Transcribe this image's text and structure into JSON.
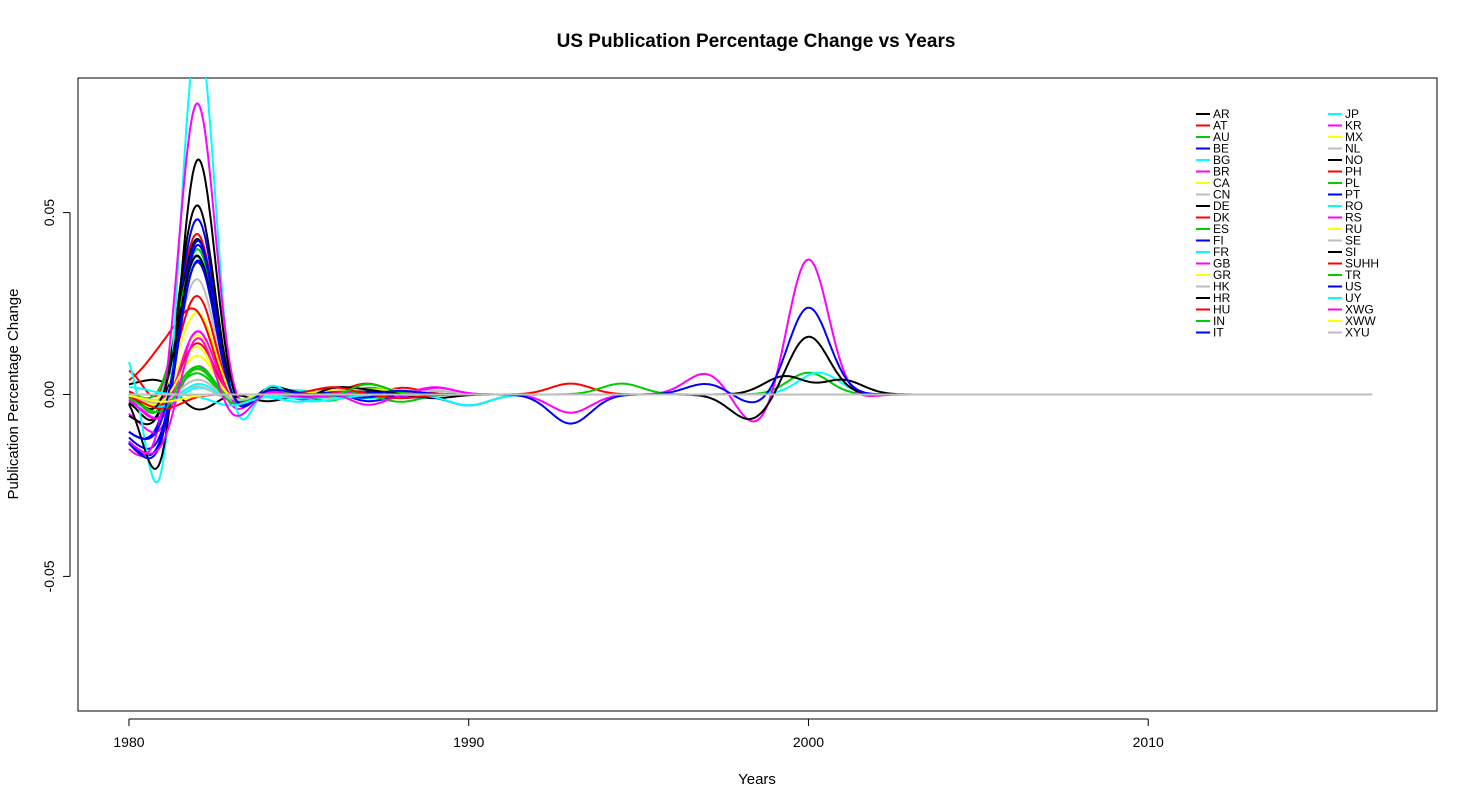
{
  "chart_data": {
    "type": "line",
    "title": "US Publication Percentage Change vs Years",
    "xlabel": "Years",
    "ylabel": "Publication Percentage Change",
    "xlim": [
      1978.5,
      2018.5
    ],
    "ylim": [
      -0.087,
      0.087
    ],
    "x_ticks": [
      1980,
      1990,
      2000,
      2010
    ],
    "y_ticks": [
      -0.05,
      0.0,
      0.05
    ],
    "y_tick_labels": [
      "-0.05",
      "0.00",
      "0.05"
    ],
    "grid": false,
    "legend_placement": "top-right",
    "palette": [
      "#000000",
      "#ff0000",
      "#00cd00",
      "#0000ff",
      "#00ffff",
      "#ff00ff",
      "#ffff00",
      "#bebebe"
    ],
    "series": [
      {
        "name": "AR",
        "color": "#000000",
        "amps": [
          0.002,
          0.004,
          -0.005,
          0.001,
          -0.002,
          0.0,
          0.0,
          0.0,
          0.0,
          -0.001
        ]
      },
      {
        "name": "AT",
        "color": "#ff0000",
        "amps": [
          0.008,
          -0.008,
          0.047,
          -0.007,
          0.002,
          -0.001,
          0.001,
          -0.001,
          0.002,
          0.0
        ]
      },
      {
        "name": "AU",
        "color": "#00cd00",
        "amps": [
          0.002,
          -0.01,
          0.043,
          -0.006,
          0.001,
          0.0,
          -0.001,
          0.002,
          0.0,
          0.001
        ]
      },
      {
        "name": "BE",
        "color": "#0000ff",
        "amps": [
          -0.008,
          -0.012,
          0.052,
          -0.008,
          0.002,
          -0.001,
          0.001,
          -0.002,
          0.0,
          0.0
        ]
      },
      {
        "name": "BG",
        "color": "#00ffff",
        "amps": [
          0.0,
          -0.006,
          0.04,
          -0.005,
          0.001,
          0.001,
          0.0,
          -0.001,
          0.0,
          0.0
        ]
      },
      {
        "name": "BR",
        "color": "#ff00ff",
        "amps": [
          -0.003,
          -0.012,
          0.021,
          -0.007,
          0.002,
          -0.001,
          0.002,
          0.0,
          -0.001,
          0.002
        ]
      },
      {
        "name": "CA",
        "color": "#ffff00",
        "amps": [
          0.0,
          -0.005,
          0.018,
          -0.004,
          0.001,
          0.0,
          0.0,
          0.001,
          0.0,
          0.0
        ]
      },
      {
        "name": "CN",
        "color": "#bebebe",
        "amps": [
          0.0,
          -0.006,
          0.034,
          -0.006,
          0.001,
          0.0,
          -0.001,
          0.0,
          0.0,
          0.001
        ]
      },
      {
        "name": "DE",
        "color": "#000000",
        "amps": [
          -0.004,
          -0.01,
          0.046,
          -0.007,
          0.002,
          0.0,
          0.001,
          0.0,
          0.001,
          0.0
        ]
      },
      {
        "name": "DK",
        "color": "#ff0000",
        "amps": [
          0.0,
          -0.005,
          0.029,
          -0.005,
          0.001,
          -0.001,
          0.0,
          0.003,
          0.0,
          0.0
        ]
      },
      {
        "name": "ES",
        "color": "#00cd00",
        "amps": [
          0.001,
          -0.004,
          0.04,
          -0.005,
          0.001,
          0.0,
          0.001,
          0.0,
          -0.002,
          0.0
        ]
      },
      {
        "name": "FI",
        "color": "#0000ff",
        "amps": [
          -0.01,
          -0.017,
          0.047,
          -0.008,
          0.002,
          -0.001,
          0.0,
          -0.001,
          0.001,
          0.0
        ]
      },
      {
        "name": "FR",
        "color": "#00ffff",
        "amps": [
          0.001,
          -0.004,
          0.003,
          -0.002,
          0.0,
          -0.002,
          0.0,
          0.0,
          0.0,
          0.0
        ]
      },
      {
        "name": "GB",
        "color": "#ff00ff",
        "amps": [
          0.0,
          -0.008,
          0.01,
          -0.004,
          0.001,
          0.0,
          0.0,
          0.001,
          0.0,
          0.0
        ]
      },
      {
        "name": "GR",
        "color": "#ffff00",
        "amps": [
          0.0,
          -0.004,
          0.024,
          -0.004,
          0.001,
          0.0,
          0.0,
          0.0,
          0.0,
          0.0
        ]
      },
      {
        "name": "HK",
        "color": "#bebebe",
        "amps": [
          0.0,
          -0.003,
          0.008,
          -0.003,
          0.0,
          0.0,
          0.0,
          0.0,
          0.0,
          0.0
        ]
      },
      {
        "name": "HR",
        "color": "#000000",
        "amps": [
          0.0,
          -0.012,
          0.056,
          -0.009,
          0.003,
          0.0,
          0.0,
          0.0,
          0.0,
          0.0
        ]
      },
      {
        "name": "HU",
        "color": "#ff0000",
        "amps": [
          0.002,
          0.01,
          0.022,
          -0.005,
          0.001,
          0.0,
          0.0,
          0.0,
          0.0,
          0.0
        ]
      },
      {
        "name": "IN",
        "color": "#00cd00",
        "amps": [
          0.0,
          -0.003,
          0.007,
          -0.003,
          0.0,
          0.0,
          -0.002,
          0.002,
          0.0,
          0.0
        ]
      },
      {
        "name": "IT",
        "color": "#0000ff",
        "amps": [
          -0.009,
          -0.015,
          0.041,
          -0.007,
          0.002,
          -0.001,
          0.001,
          0.001,
          -0.001,
          0.0
        ]
      },
      {
        "name": "JP",
        "color": "#00ffff",
        "amps": [
          0.017,
          -0.043,
          0.11,
          -0.018,
          0.005,
          -0.002,
          -0.001,
          0.0,
          0.0,
          0.0
        ]
      },
      {
        "name": "KR",
        "color": "#ff00ff",
        "amps": [
          -0.012,
          -0.016,
          0.085,
          -0.01,
          0.003,
          -0.002,
          0.001,
          -0.003,
          0.0,
          0.002
        ]
      },
      {
        "name": "MX",
        "color": "#ffff00",
        "amps": [
          0.0,
          -0.005,
          0.015,
          -0.005,
          0.001,
          0.0,
          0.001,
          0.001,
          0.001,
          0.0
        ]
      },
      {
        "name": "NL",
        "color": "#bebebe",
        "amps": [
          0.0,
          -0.002,
          0.003,
          -0.002,
          0.0,
          0.0,
          0.0,
          0.0,
          0.0,
          0.0
        ]
      },
      {
        "name": "NO",
        "color": "#000000",
        "amps": [
          0.003,
          -0.03,
          0.072,
          -0.01,
          0.003,
          -0.002,
          0.002,
          0.001,
          0.0,
          0.0
        ]
      },
      {
        "name": "PH",
        "color": "#ff0000",
        "amps": [
          0.002,
          -0.006,
          0.016,
          -0.004,
          0.001,
          0.0,
          0.002,
          0.0,
          -0.001,
          0.0
        ]
      },
      {
        "name": "PL",
        "color": "#00cd00",
        "amps": [
          0.001,
          -0.004,
          0.009,
          -0.003,
          0.001,
          0.0,
          -0.001,
          0.003,
          0.0,
          0.0
        ]
      },
      {
        "name": "PT",
        "color": "#0000ff",
        "amps": [
          -0.01,
          -0.018,
          0.046,
          -0.008,
          0.002,
          -0.001,
          0.0,
          0.0,
          0.001,
          0.0
        ]
      },
      {
        "name": "RO",
        "color": "#00ffff",
        "amps": [
          0.0,
          -0.004,
          0.004,
          -0.002,
          0.0,
          0.0,
          0.0,
          0.0,
          0.0,
          0.0
        ]
      },
      {
        "name": "RS",
        "color": "#ff00ff",
        "amps": [
          0.0,
          -0.009,
          0.02,
          -0.005,
          0.001,
          -0.001,
          0.0,
          0.0,
          0.0,
          0.0
        ]
      },
      {
        "name": "RU",
        "color": "#ffff00",
        "amps": [
          0.0,
          -0.004,
          0.012,
          -0.003,
          0.001,
          0.0,
          0.0,
          0.0,
          0.0,
          0.0
        ]
      },
      {
        "name": "SE",
        "color": "#bebebe",
        "amps": [
          0.0,
          -0.003,
          0.005,
          -0.002,
          0.0,
          0.0,
          0.0,
          0.0,
          0.0,
          0.0
        ]
      },
      {
        "name": "SI",
        "color": "#000000",
        "amps": [
          0.001,
          -0.008,
          0.041,
          -0.007,
          0.002,
          -0.001,
          0.0,
          0.0,
          0.0,
          0.0
        ]
      },
      {
        "name": "SUHH",
        "color": "#ff0000",
        "amps": [
          0.0,
          -0.004,
          0.0,
          0.0,
          0.0,
          0.0,
          0.0,
          0.0,
          0.0,
          0.0
        ]
      },
      {
        "name": "TR",
        "color": "#00cd00",
        "amps": [
          0.0,
          -0.006,
          0.009,
          -0.004,
          0.001,
          0.0,
          0.0,
          0.0,
          0.0,
          0.0
        ]
      },
      {
        "name": "US",
        "color": "#0000ff",
        "amps": [
          -0.008,
          -0.012,
          0.04,
          -0.007,
          0.002,
          0.0,
          0.0,
          0.0,
          0.0,
          0.0
        ]
      },
      {
        "name": "UY",
        "color": "#00ffff",
        "amps": [
          0.002,
          0.0,
          0.0,
          -0.003,
          0.0,
          -0.001,
          0.0,
          0.0,
          0.0,
          0.0
        ]
      },
      {
        "name": "XWG",
        "color": "#ff00ff",
        "amps": [
          -0.01,
          -0.015,
          0.02,
          -0.009,
          0.002,
          -0.001,
          0.0,
          0.0,
          0.0,
          0.0
        ]
      },
      {
        "name": "XWW",
        "color": "#ffff00",
        "amps": [
          0.0,
          -0.002,
          0.0,
          0.0,
          0.0,
          0.0,
          0.0,
          0.0,
          0.0,
          0.0
        ]
      },
      {
        "name": "XYU",
        "color": "#bebebe",
        "amps": [
          0.0,
          0.0,
          0.0,
          0.0,
          0.0,
          0.0,
          0.0,
          0.0,
          0.0,
          0.0
        ]
      }
    ],
    "late_features": [
      {
        "name": "KR",
        "year": 1993,
        "value": -0.005
      },
      {
        "name": "KR",
        "year": 1997,
        "value": 0.006
      },
      {
        "name": "KR",
        "year": 1998.5,
        "value": -0.009
      },
      {
        "name": "KR",
        "year": 2000,
        "value": 0.038
      },
      {
        "name": "KR",
        "year": 2001,
        "value": -0.002
      },
      {
        "name": "US",
        "year": 1993,
        "value": -0.008
      },
      {
        "name": "US",
        "year": 1997,
        "value": 0.003
      },
      {
        "name": "US",
        "year": 1998.5,
        "value": -0.003
      },
      {
        "name": "US",
        "year": 2000,
        "value": 0.024
      },
      {
        "name": "NO",
        "year": 1998.3,
        "value": -0.007
      },
      {
        "name": "NO",
        "year": 2000,
        "value": 0.016
      },
      {
        "name": "HR",
        "year": 1999.3,
        "value": 0.005
      },
      {
        "name": "HR",
        "year": 2001,
        "value": 0.004
      },
      {
        "name": "PH",
        "year": 1993,
        "value": 0.003
      },
      {
        "name": "PL",
        "year": 1994.5,
        "value": 0.003
      },
      {
        "name": "AU",
        "year": 2000,
        "value": 0.006
      },
      {
        "name": "BG",
        "year": 2000.3,
        "value": 0.006
      },
      {
        "name": "IT",
        "year": 1990,
        "value": -0.003
      },
      {
        "name": "JP",
        "year": 1990,
        "value": -0.003
      }
    ]
  }
}
